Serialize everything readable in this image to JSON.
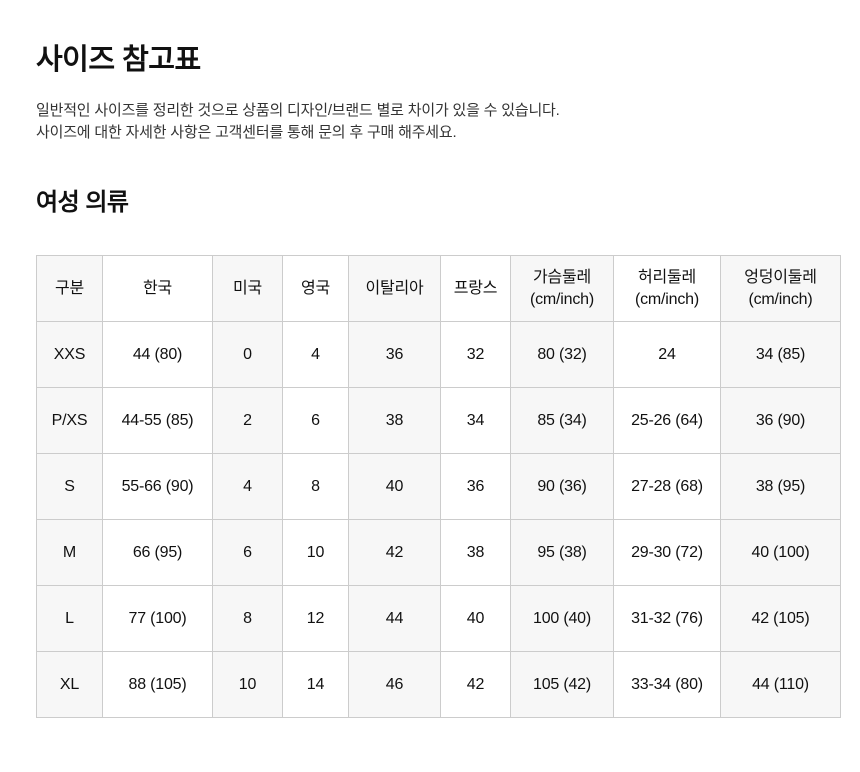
{
  "page": {
    "title": "사이즈 참고표",
    "description_line1": "일반적인 사이즈를 정리한 것으로 상품의 디자인/브랜드 별로 차이가 있을 수 있습니다.",
    "description_line2": "사이즈에 대한 자세한 사항은 고객센터를 통해 문의 후 구매 해주세요.",
    "section_title": "여성 의류"
  },
  "colors": {
    "stripe_background": "#f7f7f7",
    "cell_background": "#ffffff",
    "border": "#cccccc",
    "heading_text": "#111111",
    "body_text": "#333333"
  },
  "size_table": {
    "columns": [
      "구분",
      "한국",
      "미국",
      "영국",
      "이탈리아",
      "프랑스",
      "가슴둘레\n(cm/inch)",
      "허리둘레\n(cm/inch)",
      "엉덩이둘레\n(cm/inch)"
    ],
    "rows": [
      [
        "XXS",
        "44 (80)",
        "0",
        "4",
        "36",
        "32",
        "80 (32)",
        "24",
        "34 (85)"
      ],
      [
        "P/XS",
        "44-55 (85)",
        "2",
        "6",
        "38",
        "34",
        "85 (34)",
        "25-26 (64)",
        "36 (90)"
      ],
      [
        "S",
        "55-66 (90)",
        "4",
        "8",
        "40",
        "36",
        "90 (36)",
        "27-28 (68)",
        "38 (95)"
      ],
      [
        "M",
        "66 (95)",
        "6",
        "10",
        "42",
        "38",
        "95 (38)",
        "29-30 (72)",
        "40 (100)"
      ],
      [
        "L",
        "77 (100)",
        "8",
        "12",
        "44",
        "40",
        "100 (40)",
        "31-32 (76)",
        "42 (105)"
      ],
      [
        "XL",
        "88 (105)",
        "10",
        "14",
        "46",
        "42",
        "105 (42)",
        "33-34 (80)",
        "44 (110)"
      ]
    ]
  }
}
